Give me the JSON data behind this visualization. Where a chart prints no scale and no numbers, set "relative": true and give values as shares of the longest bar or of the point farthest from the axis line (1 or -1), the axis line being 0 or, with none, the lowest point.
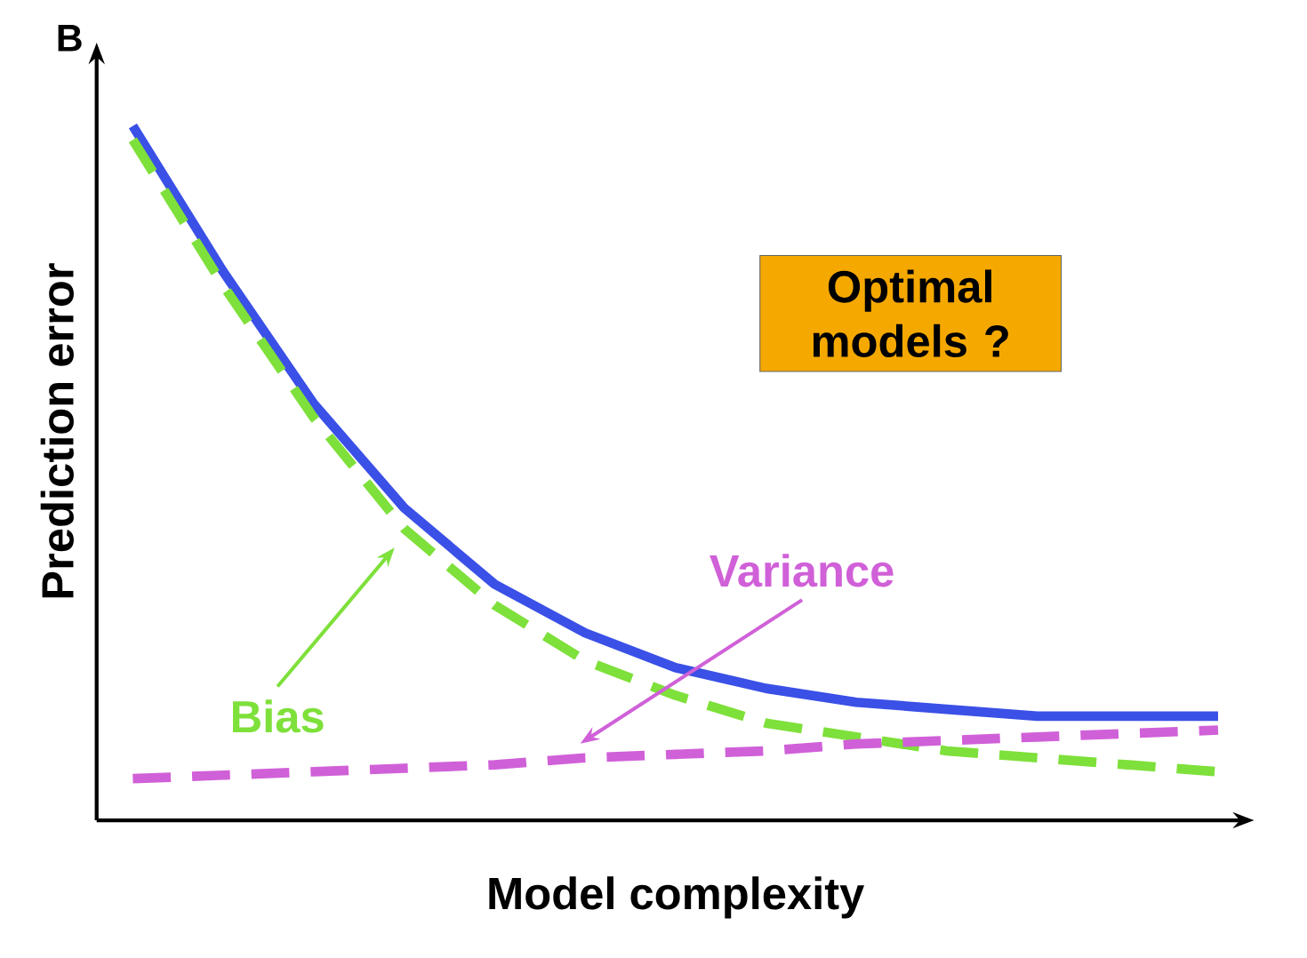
{
  "chart_data": {
    "type": "line",
    "relative": true,
    "xlabel": "Model complexity",
    "ylabel": "Prediction error",
    "annotations": [
      "B",
      "Optimal models ?"
    ],
    "categories": [
      null,
      null,
      null,
      null,
      null,
      null,
      null,
      null,
      null,
      null,
      null,
      null,
      null
    ],
    "series": [
      {
        "color": "#3a50e6",
        "line_style": "solid",
        "values": [
          1.0,
          0.79,
          0.6,
          0.45,
          0.34,
          0.27,
          0.22,
          0.19,
          0.17,
          0.16,
          0.15,
          0.15,
          0.15
        ]
      },
      {
        "name": "Bias",
        "color": "#7ee03a",
        "line_style": "dashed",
        "values": [
          0.98,
          0.77,
          0.58,
          0.42,
          0.31,
          0.23,
          0.18,
          0.14,
          0.12,
          0.1,
          0.09,
          0.08,
          0.07
        ]
      },
      {
        "name": "Variance",
        "color": "#d060d8",
        "line_style": "dashed",
        "values": [
          0.06,
          0.065,
          0.07,
          0.075,
          0.08,
          0.09,
          0.095,
          0.1,
          0.11,
          0.115,
          0.12,
          0.125,
          0.13
        ]
      }
    ],
    "marker": "none"
  }
}
